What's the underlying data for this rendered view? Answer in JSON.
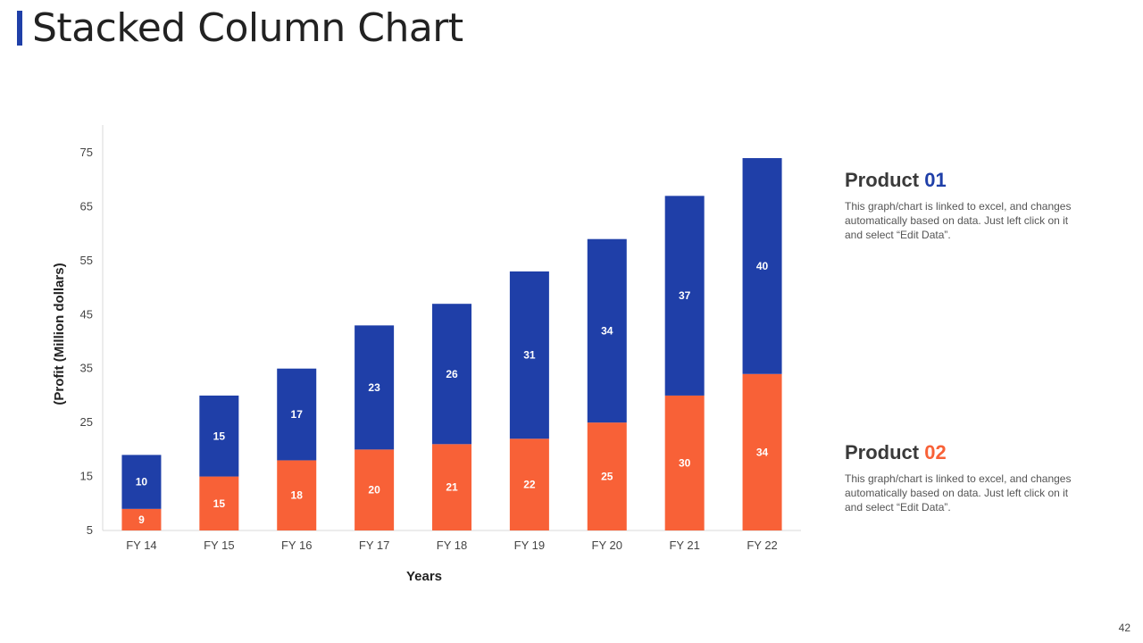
{
  "page": {
    "title": "Stacked Column Chart",
    "page_number": "42"
  },
  "legend": {
    "product1": {
      "name": "Product",
      "number": "01",
      "description": "This graph/chart is linked to excel, and changes automatically based on data. Just left click on it and select “Edit Data”."
    },
    "product2": {
      "name": "Product",
      "number": "02",
      "description": "This graph/chart is linked to excel, and changes automatically based on data. Just left click on it and select “Edit Data”."
    }
  },
  "colors": {
    "blue": "#1f3fa8",
    "orange": "#f86137"
  },
  "chart_data": {
    "type": "bar",
    "stacked": true,
    "categories": [
      "FY 14",
      "FY 15",
      "FY 16",
      "FY 17",
      "FY 18",
      "FY 19",
      "FY 20",
      "FY 21",
      "FY 22"
    ],
    "series": [
      {
        "name": "Product 02",
        "values": [
          9,
          15,
          18,
          20,
          21,
          22,
          25,
          30,
          34
        ],
        "color": "#f86137"
      },
      {
        "name": "Product 01",
        "values": [
          10,
          15,
          17,
          23,
          26,
          31,
          34,
          37,
          40
        ],
        "color": "#1f3fa8"
      }
    ],
    "xlabel": "Years",
    "ylabel": "(Profit  (Million dollars)",
    "ylim": [
      5,
      75
    ],
    "yticks": [
      5,
      15,
      25,
      35,
      45,
      55,
      65,
      75
    ],
    "grid": false,
    "legend": "right"
  }
}
